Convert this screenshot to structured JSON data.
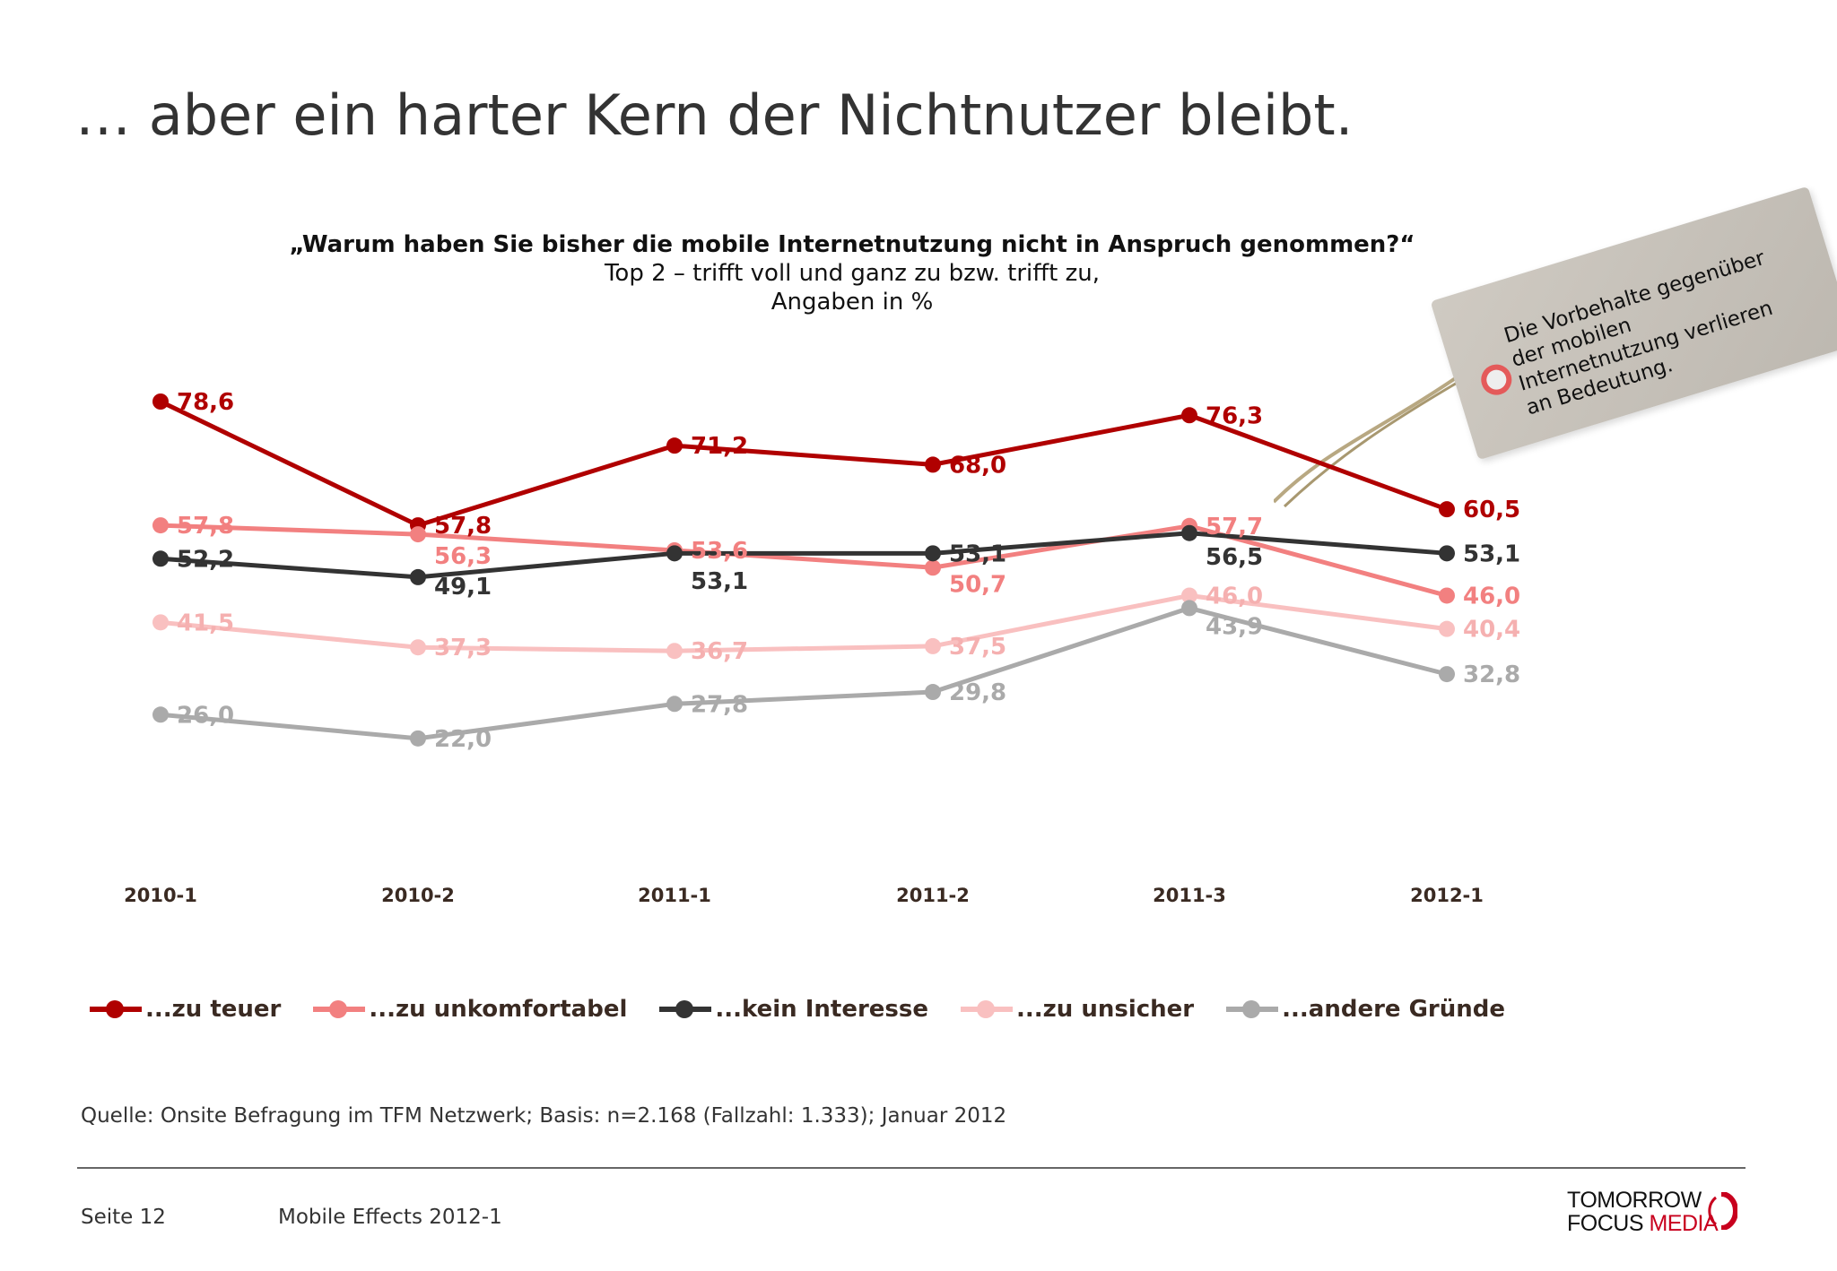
{
  "title": "… aber ein harter Kern der Nichtnutzer bleibt.",
  "question": "„Warum haben Sie bisher die mobile Internetnutzung nicht in Anspruch genommen?“",
  "subtitle_line1": "Top 2 – trifft voll und ganz zu bzw. trifft zu,",
  "subtitle_line2": "Angaben in %",
  "tag": {
    "line1": "Die Vorbehalte gegenüber",
    "line2": "der mobilen",
    "line3": "Internetnutzung verlieren",
    "line4": "an Bedeutung."
  },
  "chart_data": {
    "type": "line",
    "categories": [
      "2010-1",
      "2010-2",
      "2011-1",
      "2011-2",
      "2011-3",
      "2012-1"
    ],
    "series": [
      {
        "name": "...zu teuer",
        "color": "#b00000",
        "values": [
          78.6,
          57.8,
          71.2,
          68.0,
          76.3,
          60.5
        ],
        "labels": [
          "78,6",
          "57,8",
          "71,2",
          "68,0",
          "76,3",
          "60,5"
        ]
      },
      {
        "name": "...zu unkomfortabel",
        "color": "#f28080",
        "values": [
          57.8,
          56.3,
          53.6,
          50.7,
          57.7,
          46.0
        ],
        "labels": [
          "57,8",
          "56,3",
          "53,6",
          "50,7",
          "57,7",
          "46,0"
        ]
      },
      {
        "name": "...kein Interesse",
        "color": "#333333",
        "values": [
          52.2,
          49.1,
          53.1,
          53.1,
          56.5,
          53.1
        ],
        "labels": [
          "52,2",
          "49,1",
          "53,1",
          "53,1",
          "56,5",
          "53,1"
        ]
      },
      {
        "name": "...zu unsicher",
        "color": "#f9c0c0",
        "values": [
          41.5,
          37.3,
          36.7,
          37.5,
          46.0,
          40.4
        ],
        "labels": [
          "41,5",
          "37,3",
          "36,7",
          "37,5",
          "46,0",
          "40,4"
        ]
      },
      {
        "name": "...andere Gründe",
        "color": "#aaaaaa",
        "values": [
          26.0,
          22.0,
          27.8,
          29.8,
          43.9,
          32.8
        ],
        "labels": [
          "26,0",
          "22,0",
          "27,8",
          "29,8",
          "43,9",
          "32,8"
        ]
      }
    ],
    "legend_position": "bottom",
    "grid": false
  },
  "source": "Quelle: Onsite Befragung im TFM Netzwerk; Basis: n=2.168 (Fallzahl: 1.333); Januar 2012",
  "footer": {
    "page": "Seite 12",
    "report": "Mobile Effects 2012-1"
  },
  "logo": {
    "line1": "TOMORROW",
    "line2a": "FOCUS",
    "line2b": "MEDIA"
  }
}
